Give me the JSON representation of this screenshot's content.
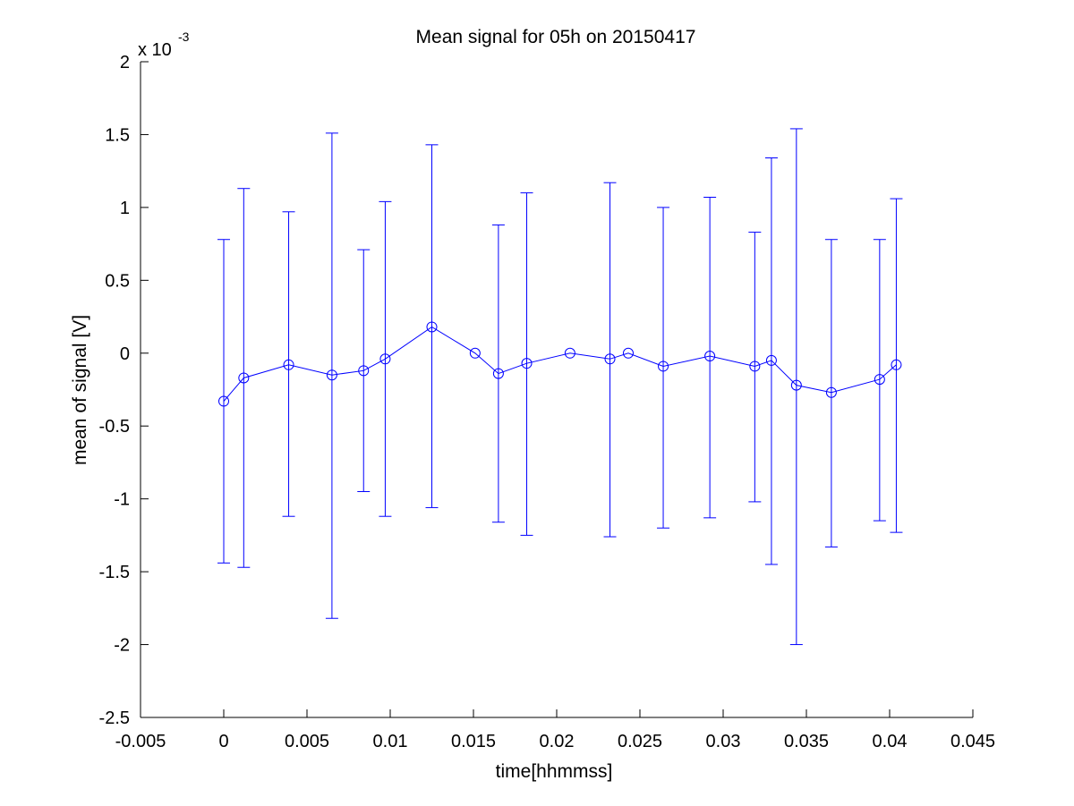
{
  "chart_data": {
    "type": "scatter",
    "title": "Mean signal for 05h on 20150417",
    "xlabel": "time[hhmmss]",
    "ylabel": "mean of signal [V]",
    "y_exponent_label": {
      "base": "x 10",
      "exponent": "-3"
    },
    "y_multiplier": 0.001,
    "xlim": [
      -0.005,
      0.045
    ],
    "ylim": [
      -2.5,
      2
    ],
    "x_ticks": [
      -0.005,
      0,
      0.005,
      0.01,
      0.015,
      0.02,
      0.025,
      0.03,
      0.035,
      0.04,
      0.045
    ],
    "x_tick_labels": [
      "-0.005",
      "0",
      "0.005",
      "0.01",
      "0.015",
      "0.02",
      "0.025",
      "0.03",
      "0.035",
      "0.04",
      "0.045"
    ],
    "y_ticks": [
      -2.5,
      -2,
      -1.5,
      -1,
      -0.5,
      0,
      0.5,
      1,
      1.5,
      2
    ],
    "y_tick_labels": [
      "-2.5",
      "-2",
      "-1.5",
      "-1",
      "-0.5",
      "0",
      "0.5",
      "1",
      "1.5",
      "2"
    ],
    "grid": false,
    "line_color": "#0000ff",
    "marker": "circle",
    "series": [
      {
        "x": [
          0.0,
          0.0012,
          0.0039,
          0.0065,
          0.0084,
          0.0097,
          0.0125,
          0.0151,
          0.0165,
          0.0182,
          0.0208,
          0.0232,
          0.0243,
          0.0264,
          0.0292,
          0.0319,
          0.0329,
          0.0344,
          0.0365,
          0.0394,
          0.0404
        ],
        "y": [
          -0.33,
          -0.17,
          -0.08,
          -0.15,
          -0.12,
          -0.04,
          0.18,
          0.0,
          -0.14,
          -0.07,
          0.0,
          -0.04,
          0.0,
          -0.09,
          -0.02,
          -0.09,
          -0.05,
          -0.22,
          -0.27,
          -0.18,
          -0.08
        ],
        "err_low": [
          -1.44,
          -1.47,
          -1.12,
          -1.82,
          -0.95,
          -1.12,
          -1.06,
          null,
          -1.16,
          -1.25,
          null,
          -1.26,
          null,
          -1.2,
          -1.13,
          -1.02,
          -1.45,
          -2.0,
          -1.33,
          -1.15,
          -1.23
        ],
        "err_high": [
          0.78,
          1.13,
          0.97,
          1.51,
          0.71,
          1.04,
          1.43,
          null,
          0.88,
          1.1,
          null,
          1.17,
          null,
          1.0,
          1.07,
          0.83,
          1.34,
          1.54,
          0.78,
          0.78,
          1.06
        ]
      }
    ]
  }
}
